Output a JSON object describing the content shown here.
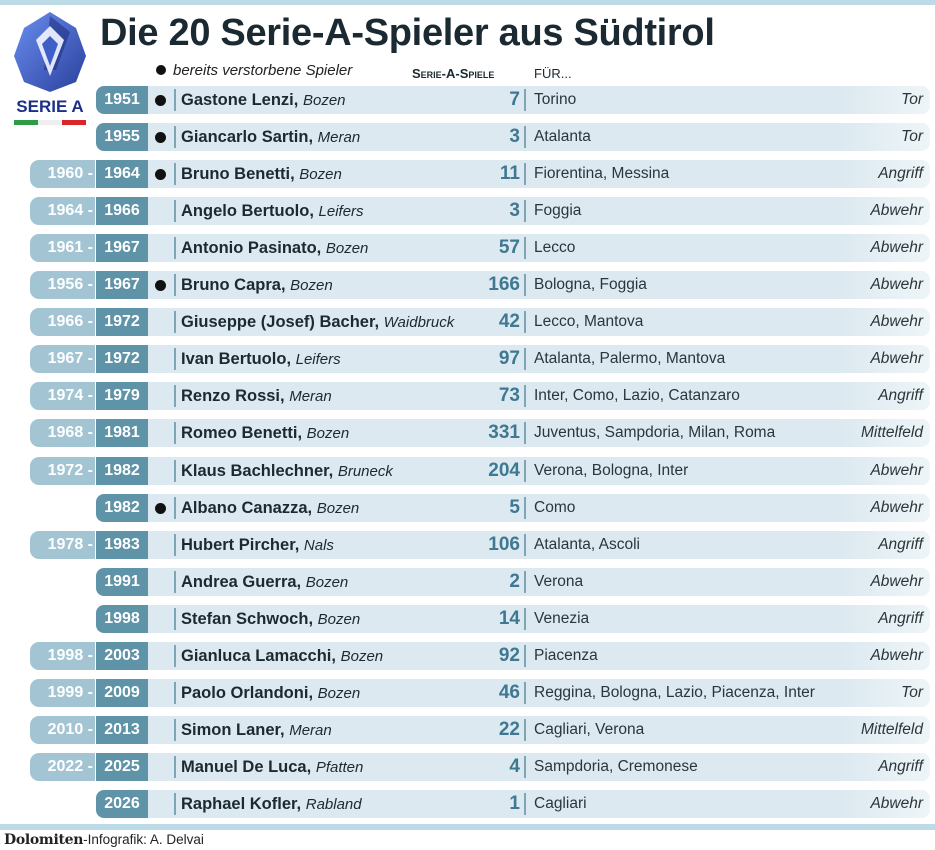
{
  "title": "Die 20 Serie-A-Spieler aus Südtirol",
  "legend": "bereits verstorbene Spieler",
  "header": {
    "games": "Serie-A-Spiele",
    "for": "FÜR..."
  },
  "logo": {
    "text": "SERIE A",
    "flag_colors": [
      "#2e9b46",
      "#ffffff",
      "#d9262b"
    ],
    "accent": "#3d5fc7"
  },
  "colors": {
    "start_year": "#a3c5d3",
    "end_year": "#5f93a8",
    "row_bg": "#dce9f0",
    "games": "#3f7891"
  },
  "players": [
    {
      "start": "",
      "end": "1951",
      "deceased": true,
      "name": "Gastone Lenzi",
      "town": "Bozen",
      "games": "7",
      "clubs": "Torino",
      "position": "Tor"
    },
    {
      "start": "",
      "end": "1955",
      "deceased": true,
      "name": "Giancarlo Sartin",
      "town": "Meran",
      "games": "3",
      "clubs": "Atalanta",
      "position": "Tor"
    },
    {
      "start": "1960",
      "end": "1964",
      "deceased": true,
      "name": "Bruno Benetti",
      "town": "Bozen",
      "games": "11",
      "clubs": "Fiorentina, Messina",
      "position": "Angriff"
    },
    {
      "start": "1964",
      "end": "1966",
      "deceased": false,
      "name": "Angelo Bertuolo",
      "town": "Leifers",
      "games": "3",
      "clubs": "Foggia",
      "position": "Abwehr"
    },
    {
      "start": "1961",
      "end": "1967",
      "deceased": false,
      "name": "Antonio Pasinato",
      "town": "Bozen",
      "games": "57",
      "clubs": "Lecco",
      "position": "Abwehr"
    },
    {
      "start": "1956",
      "end": "1967",
      "deceased": true,
      "name": "Bruno Capra",
      "town": "Bozen",
      "games": "166",
      "clubs": "Bologna, Foggia",
      "position": "Abwehr"
    },
    {
      "start": "1966",
      "end": "1972",
      "deceased": false,
      "name": "Giuseppe (Josef) Bacher",
      "town": "Waidbruck",
      "games": "42",
      "clubs": "Lecco, Mantova",
      "position": "Abwehr"
    },
    {
      "start": "1967",
      "end": "1972",
      "deceased": false,
      "name": "Ivan Bertuolo",
      "town": "Leifers",
      "games": "97",
      "clubs": "Atalanta, Palermo, Mantova",
      "position": "Abwehr"
    },
    {
      "start": "1974",
      "end": "1979",
      "deceased": false,
      "name": "Renzo Rossi",
      "town": "Meran",
      "games": "73",
      "clubs": "Inter, Como, Lazio, Catanzaro",
      "position": "Angriff"
    },
    {
      "start": "1968",
      "end": "1981",
      "deceased": false,
      "name": "Romeo Benetti",
      "town": "Bozen",
      "games": "331",
      "clubs": "Juventus, Sampdoria, Milan, Roma",
      "position": "Mittelfeld"
    },
    {
      "start": "1972",
      "end": "1982",
      "deceased": false,
      "name": "Klaus Bachlechner",
      "town": "Bruneck",
      "games": "204",
      "clubs": "Verona, Bologna, Inter",
      "position": "Abwehr"
    },
    {
      "start": "",
      "end": "1982",
      "deceased": true,
      "name": "Albano Canazza",
      "town": "Bozen",
      "games": "5",
      "clubs": "Como",
      "position": "Abwehr"
    },
    {
      "start": "1978",
      "end": "1983",
      "deceased": false,
      "name": "Hubert Pircher",
      "town": "Nals",
      "games": "106",
      "clubs": "Atalanta, Ascoli",
      "position": "Angriff"
    },
    {
      "start": "",
      "end": "1991",
      "deceased": false,
      "name": "Andrea Guerra",
      "town": "Bozen",
      "games": "2",
      "clubs": "Verona",
      "position": "Abwehr"
    },
    {
      "start": "",
      "end": "1998",
      "deceased": false,
      "name": "Stefan Schwoch",
      "town": "Bozen",
      "games": "14",
      "clubs": "Venezia",
      "position": "Angriff"
    },
    {
      "start": "1998",
      "end": "2003",
      "deceased": false,
      "name": "Gianluca Lamacchi",
      "town": "Bozen",
      "games": "92",
      "clubs": "Piacenza",
      "position": "Abwehr"
    },
    {
      "start": "1999",
      "end": "2009",
      "deceased": false,
      "name": "Paolo Orlandoni",
      "town": "Bozen",
      "games": "46",
      "clubs": "Reggina, Bologna, Lazio, Piacenza, Inter",
      "position": "Tor"
    },
    {
      "start": "2010",
      "end": "2013",
      "deceased": false,
      "name": "Simon Laner",
      "town": "Meran",
      "games": "22",
      "clubs": "Cagliari, Verona",
      "position": "Mittelfeld"
    },
    {
      "start": "2022",
      "end": "2025",
      "deceased": false,
      "name": "Manuel De Luca",
      "town": "Pfatten",
      "games": "4",
      "clubs": "Sampdoria, Cremonese",
      "position": "Angriff"
    },
    {
      "start": "",
      "end": "2026",
      "deceased": false,
      "name": "Raphael Kofler",
      "town": "Rabland",
      "games": "1",
      "clubs": "Cagliari",
      "position": "Abwehr"
    }
  ],
  "credit": {
    "brand": "Dolomiten",
    "text": "-Infografik: A. Delvai"
  }
}
